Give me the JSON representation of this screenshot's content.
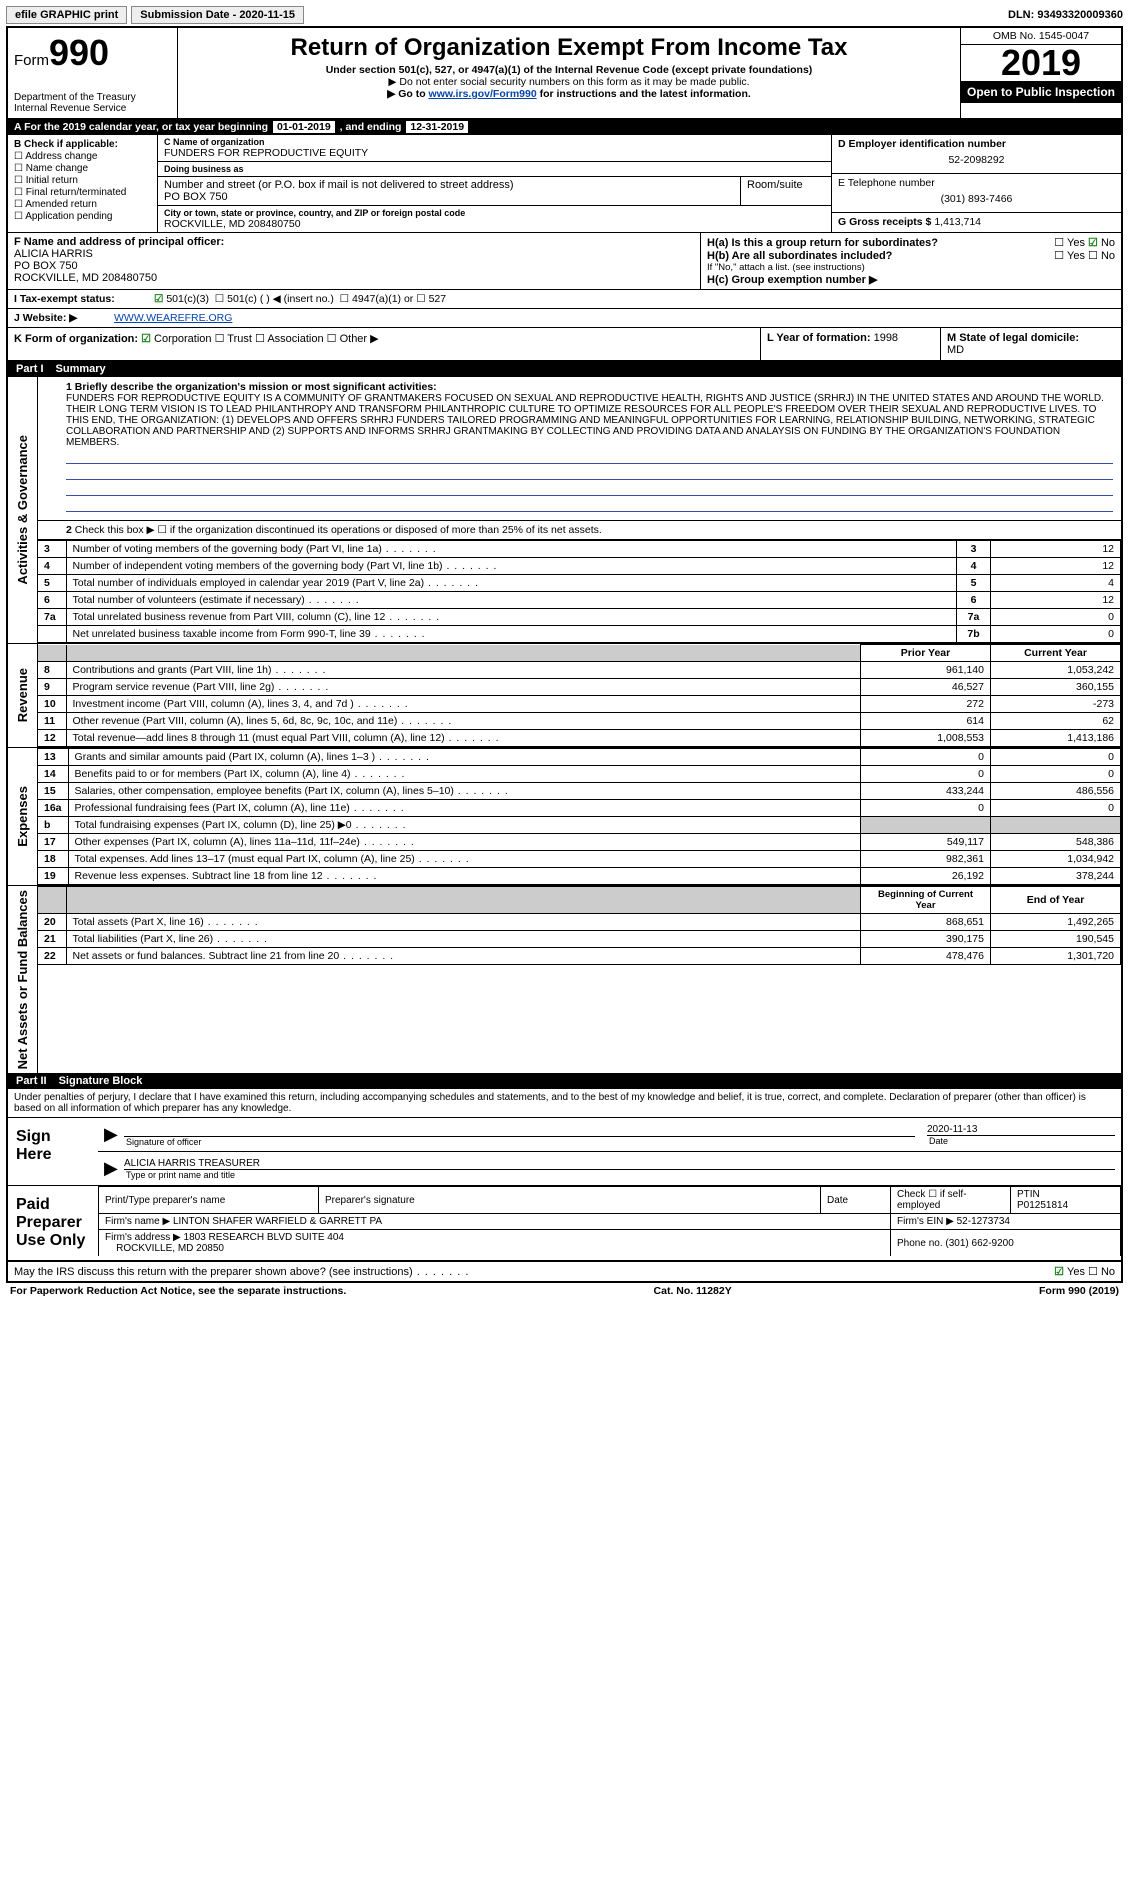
{
  "top": {
    "efile": "efile GRAPHIC print",
    "submission_label": "Submission Date - 2020-11-15",
    "dln": "DLN: 93493320009360"
  },
  "header": {
    "form_word": "Form",
    "form_num": "990",
    "dept": "Department of the Treasury\nInternal Revenue Service",
    "title": "Return of Organization Exempt From Income Tax",
    "sub1": "Under section 501(c), 527, or 4947(a)(1) of the Internal Revenue Code (except private foundations)",
    "sub2": "▶ Do not enter social security numbers on this form as it may be made public.",
    "sub3_pre": "▶ Go to ",
    "sub3_link": "www.irs.gov/Form990",
    "sub3_post": " for instructions and the latest information.",
    "omb": "OMB No. 1545-0047",
    "year": "2019",
    "badge": "Open to Public Inspection"
  },
  "period": {
    "text_a": "A For the 2019 calendar year, or tax year beginning ",
    "begin": "01-01-2019",
    "mid": " , and ending ",
    "end": "12-31-2019"
  },
  "b": {
    "heading": "B Check if applicable:",
    "opts": [
      "Address change",
      "Name change",
      "Initial return",
      "Final return/terminated",
      "Amended return",
      "Application pending"
    ]
  },
  "c": {
    "name_lbl": "C Name of organization",
    "name": "FUNDERS FOR REPRODUCTIVE EQUITY",
    "dba_lbl": "Doing business as",
    "dba": "",
    "street_lbl": "Number and street (or P.O. box if mail is not delivered to street address)",
    "street": "PO BOX 750",
    "room_lbl": "Room/suite",
    "city_lbl": "City or town, state or province, country, and ZIP or foreign postal code",
    "city": "ROCKVILLE, MD 208480750"
  },
  "d": {
    "lbl": "D Employer identification number",
    "val": "52-2098292"
  },
  "e": {
    "lbl": "E Telephone number",
    "val": "(301) 893-7466"
  },
  "g": {
    "lbl": "G Gross receipts $",
    "val": "1,413,714"
  },
  "f": {
    "lbl": "F Name and address of principal officer:",
    "name": "ALICIA HARRIS",
    "street": "PO BOX 750",
    "city": "ROCKVILLE, MD 208480750"
  },
  "h": {
    "ha": "H(a) Is this a group return for subordinates?",
    "ha_ans": "No",
    "hb": "H(b) Are all subordinates included?",
    "hb_note": "If \"No,\" attach a list. (see instructions)",
    "hc": "H(c) Group exemption number ▶"
  },
  "i": {
    "lbl": "I Tax-exempt status:",
    "o1": "501(c)(3)",
    "o2": "501(c) ( ) ◀ (insert no.)",
    "o3": "4947(a)(1) or",
    "o4": "527"
  },
  "j": {
    "lbl": "J Website: ▶",
    "val": "WWW.WEAREFRE.ORG"
  },
  "k": {
    "lbl": "K Form of organization:",
    "corp": "Corporation",
    "trust": "Trust",
    "assoc": "Association",
    "other": "Other ▶"
  },
  "l": {
    "lbl": "L Year of formation:",
    "val": "1998"
  },
  "m": {
    "lbl": "M State of legal domicile:",
    "val": "MD"
  },
  "part1": {
    "title": "Part I",
    "sub": "Summary",
    "q1_lbl": "1 Briefly describe the organization's mission or most significant activities:",
    "q1_text": "FUNDERS FOR REPRODUCTIVE EQUITY IS A COMMUNITY OF GRANTMAKERS FOCUSED ON SEXUAL AND REPRODUCTIVE HEALTH, RIGHTS AND JUSTICE (SRHRJ) IN THE UNITED STATES AND AROUND THE WORLD. THEIR LONG TERM VISION IS TO LEAD PHILANTHROPY AND TRANSFORM PHILANTHROPIC CULTURE TO OPTIMIZE RESOURCES FOR ALL PEOPLE'S FREEDOM OVER THEIR SEXUAL AND REPRODUCTIVE LIVES. TO THIS END, THE ORGANIZATION: (1) DEVELOPS AND OFFERS SRHRJ FUNDERS TAILORED PROGRAMMING AND MEANINGFUL OPPORTUNITIES FOR LEARNING, RELATIONSHIP BUILDING, NETWORKING, STRATEGIC COLLABORATION AND PARTNERSHIP AND (2) SUPPORTS AND INFORMS SRHRJ GRANTMAKING BY COLLECTING AND PROVIDING DATA AND ANALAYSIS ON FUNDING BY THE ORGANIZATION'S FOUNDATION MEMBERS.",
    "side_gov": "Activities & Governance",
    "side_rev": "Revenue",
    "side_exp": "Expenses",
    "side_net": "Net Assets or Fund Balances",
    "q2": "Check this box ▶ ☐ if the organization discontinued its operations or disposed of more than 25% of its net assets.",
    "prior_hdr": "Prior Year",
    "curr_hdr": "Current Year",
    "boc_hdr": "Beginning of Current Year",
    "eoy_hdr": "End of Year",
    "rows_single": [
      {
        "n": "3",
        "d": "Number of voting members of the governing body (Part VI, line 1a)",
        "k": "3",
        "v": "12"
      },
      {
        "n": "4",
        "d": "Number of independent voting members of the governing body (Part VI, line 1b)",
        "k": "4",
        "v": "12"
      },
      {
        "n": "5",
        "d": "Total number of individuals employed in calendar year 2019 (Part V, line 2a)",
        "k": "5",
        "v": "4"
      },
      {
        "n": "6",
        "d": "Total number of volunteers (estimate if necessary)",
        "k": "6",
        "v": "12"
      },
      {
        "n": "7a",
        "d": "Total unrelated business revenue from Part VIII, column (C), line 12",
        "k": "7a",
        "v": "0"
      },
      {
        "n": "",
        "d": "Net unrelated business taxable income from Form 990-T, line 39",
        "k": "7b",
        "v": "0"
      }
    ],
    "revenue": [
      {
        "n": "8",
        "d": "Contributions and grants (Part VIII, line 1h)",
        "p": "961,140",
        "c": "1,053,242"
      },
      {
        "n": "9",
        "d": "Program service revenue (Part VIII, line 2g)",
        "p": "46,527",
        "c": "360,155"
      },
      {
        "n": "10",
        "d": "Investment income (Part VIII, column (A), lines 3, 4, and 7d )",
        "p": "272",
        "c": "-273"
      },
      {
        "n": "11",
        "d": "Other revenue (Part VIII, column (A), lines 5, 6d, 8c, 9c, 10c, and 11e)",
        "p": "614",
        "c": "62"
      },
      {
        "n": "12",
        "d": "Total revenue—add lines 8 through 11 (must equal Part VIII, column (A), line 12)",
        "p": "1,008,553",
        "c": "1,413,186"
      }
    ],
    "expenses": [
      {
        "n": "13",
        "d": "Grants and similar amounts paid (Part IX, column (A), lines 1–3 )",
        "p": "0",
        "c": "0"
      },
      {
        "n": "14",
        "d": "Benefits paid to or for members (Part IX, column (A), line 4)",
        "p": "0",
        "c": "0"
      },
      {
        "n": "15",
        "d": "Salaries, other compensation, employee benefits (Part IX, column (A), lines 5–10)",
        "p": "433,244",
        "c": "486,556"
      },
      {
        "n": "16a",
        "d": "Professional fundraising fees (Part IX, column (A), line 11e)",
        "p": "0",
        "c": "0"
      },
      {
        "n": "b",
        "d": "Total fundraising expenses (Part IX, column (D), line 25) ▶0",
        "p": "",
        "c": "",
        "shade": true
      },
      {
        "n": "17",
        "d": "Other expenses (Part IX, column (A), lines 11a–11d, 11f–24e)",
        "p": "549,117",
        "c": "548,386"
      },
      {
        "n": "18",
        "d": "Total expenses. Add lines 13–17 (must equal Part IX, column (A), line 25)",
        "p": "982,361",
        "c": "1,034,942"
      },
      {
        "n": "19",
        "d": "Revenue less expenses. Subtract line 18 from line 12",
        "p": "26,192",
        "c": "378,244"
      }
    ],
    "netassets": [
      {
        "n": "20",
        "d": "Total assets (Part X, line 16)",
        "p": "868,651",
        "c": "1,492,265"
      },
      {
        "n": "21",
        "d": "Total liabilities (Part X, line 26)",
        "p": "390,175",
        "c": "190,545"
      },
      {
        "n": "22",
        "d": "Net assets or fund balances. Subtract line 21 from line 20",
        "p": "478,476",
        "c": "1,301,720"
      }
    ]
  },
  "part2": {
    "title": "Part II",
    "sub": "Signature Block",
    "decl": "Under penalties of perjury, I declare that I have examined this return, including accompanying schedules and statements, and to the best of my knowledge and belief, it is true, correct, and complete. Declaration of preparer (other than officer) is based on all information of which preparer has any knowledge.",
    "sign_here": "Sign Here",
    "sig_officer_lbl": "Signature of officer",
    "sig_date_lbl": "Date",
    "sig_date": "2020-11-13",
    "officer_name": "ALICIA HARRIS TREASURER",
    "officer_name_lbl": "Type or print name and title",
    "paid_title": "Paid Preparer Use Only",
    "p_name_lbl": "Print/Type preparer's name",
    "p_sig_lbl": "Preparer's signature",
    "p_date_lbl": "Date",
    "p_self": "Check ☐ if self-employed",
    "ptin_lbl": "PTIN",
    "ptin": "P01251814",
    "firm_name_lbl": "Firm's name ▶",
    "firm_name": "LINTON SHAFER WARFIELD & GARRETT PA",
    "firm_ein_lbl": "Firm's EIN ▶",
    "firm_ein": "52-1273734",
    "firm_addr_lbl": "Firm's address ▶",
    "firm_addr": "1803 RESEARCH BLVD SUITE 404",
    "firm_city": "ROCKVILLE, MD 20850",
    "phone_lbl": "Phone no.",
    "phone": "(301) 662-9200",
    "discuss": "May the IRS discuss this return with the preparer shown above? (see instructions)",
    "discuss_ans": "Yes"
  },
  "footer": {
    "left": "For Paperwork Reduction Act Notice, see the separate instructions.",
    "mid": "Cat. No. 11282Y",
    "right": "Form 990 (2019)"
  },
  "colors": {
    "accent_blue": "#3b4fa0",
    "link": "#0645ad",
    "check_green": "#1a7f1a",
    "shade": "#cccccc",
    "black": "#000000",
    "white": "#ffffff"
  }
}
